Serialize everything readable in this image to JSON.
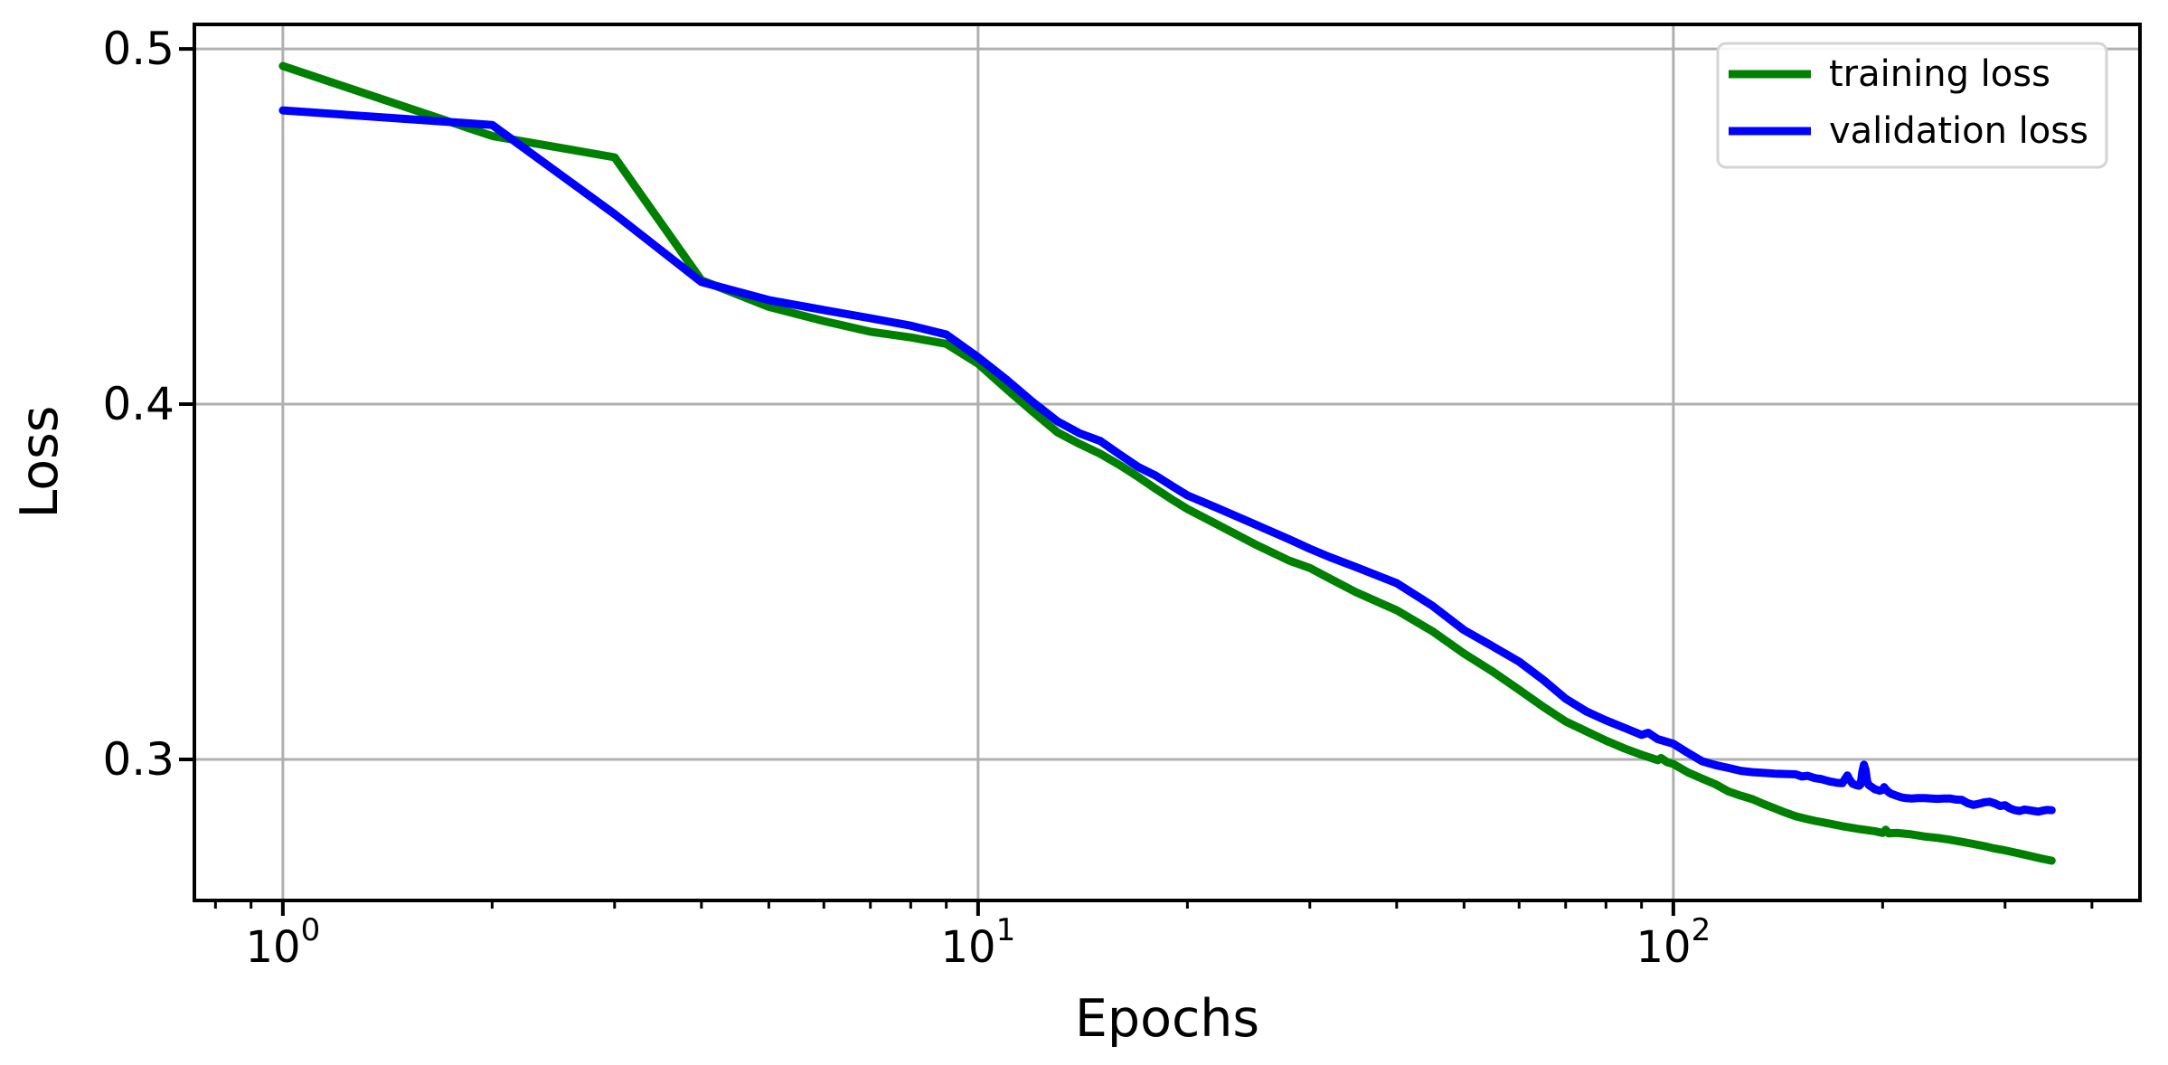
{
  "chart_data": {
    "type": "line",
    "xscale": "log",
    "title": "",
    "xlabel": "Epochs",
    "ylabel": "Loss",
    "xlim": [
      0.746,
      469
    ],
    "ylim": [
      0.2603,
      0.5069
    ],
    "grid": true,
    "colors": {
      "background": "#ffffff",
      "grid": "#b0b0b0",
      "spine": "#000000",
      "text": "#000000",
      "legend_border": "#d4d4d4"
    },
    "xticks": [
      {
        "value": 1,
        "base": "10",
        "exp": "0"
      },
      {
        "value": 10,
        "base": "10",
        "exp": "1"
      },
      {
        "value": 100,
        "base": "10",
        "exp": "2"
      }
    ],
    "minor_xticks": [
      0.8,
      0.9,
      2,
      3,
      4,
      5,
      6,
      7,
      8,
      9,
      20,
      30,
      40,
      50,
      60,
      70,
      80,
      90,
      200,
      300,
      400
    ],
    "yticks": [
      {
        "value": 0.5,
        "label": "0.5"
      },
      {
        "value": 0.4,
        "label": "0.4"
      },
      {
        "value": 0.3,
        "label": "0.3"
      }
    ],
    "legend": {
      "position": "top-right"
    },
    "series": [
      {
        "name": "training loss",
        "color": "#008000",
        "points": [
          [
            1,
            0.4952
          ],
          [
            2,
            0.4755
          ],
          [
            3,
            0.4695
          ],
          [
            4,
            0.4349
          ],
          [
            5,
            0.4274
          ],
          [
            6,
            0.4234
          ],
          [
            7,
            0.4204
          ],
          [
            8,
            0.4188
          ],
          [
            9,
            0.417
          ],
          [
            10,
            0.4114
          ],
          [
            11,
            0.4042
          ],
          [
            12,
            0.3978
          ],
          [
            13,
            0.3921
          ],
          [
            14,
            0.3888
          ],
          [
            15,
            0.386
          ],
          [
            16,
            0.3828
          ],
          [
            17,
            0.3795
          ],
          [
            18,
            0.3762
          ],
          [
            19,
            0.3732
          ],
          [
            20,
            0.3705
          ],
          [
            22,
            0.3663
          ],
          [
            25,
            0.3606
          ],
          [
            28,
            0.356
          ],
          [
            30,
            0.3539
          ],
          [
            32,
            0.351
          ],
          [
            35,
            0.347
          ],
          [
            40,
            0.342
          ],
          [
            45,
            0.3361
          ],
          [
            50,
            0.3298
          ],
          [
            55,
            0.3247
          ],
          [
            60,
            0.3196
          ],
          [
            65,
            0.3148
          ],
          [
            70,
            0.3107
          ],
          [
            75,
            0.3079
          ],
          [
            80,
            0.3053
          ],
          [
            85,
            0.3031
          ],
          [
            90,
            0.3013
          ],
          [
            95,
            0.2998
          ],
          [
            96,
            0.3004
          ],
          [
            98,
            0.2992
          ],
          [
            100,
            0.2987
          ],
          [
            105,
            0.2963
          ],
          [
            110,
            0.2946
          ],
          [
            115,
            0.293
          ],
          [
            120,
            0.291
          ],
          [
            125,
            0.2898
          ],
          [
            130,
            0.2888
          ],
          [
            135,
            0.2874
          ],
          [
            140,
            0.2862
          ],
          [
            145,
            0.285
          ],
          [
            150,
            0.284
          ],
          [
            155,
            0.2833
          ],
          [
            160,
            0.2827
          ],
          [
            165,
            0.2822
          ],
          [
            170,
            0.2817
          ],
          [
            175,
            0.2812
          ],
          [
            180,
            0.2808
          ],
          [
            185,
            0.2804
          ],
          [
            190,
            0.2801
          ],
          [
            195,
            0.2798
          ],
          [
            198,
            0.2795
          ],
          [
            200,
            0.2793
          ],
          [
            202,
            0.2802
          ],
          [
            204,
            0.2792
          ],
          [
            210,
            0.2793
          ],
          [
            215,
            0.2791
          ],
          [
            220,
            0.2789
          ],
          [
            230,
            0.2783
          ],
          [
            240,
            0.2779
          ],
          [
            250,
            0.2774
          ],
          [
            260,
            0.2768
          ],
          [
            270,
            0.2762
          ],
          [
            280,
            0.2756
          ],
          [
            290,
            0.2749
          ],
          [
            300,
            0.2744
          ],
          [
            310,
            0.2738
          ],
          [
            320,
            0.2732
          ],
          [
            330,
            0.2726
          ],
          [
            340,
            0.272
          ],
          [
            350,
            0.2715
          ]
        ]
      },
      {
        "name": "validation loss",
        "color": "#0000ff",
        "points": [
          [
            1,
            0.4827
          ],
          [
            2,
            0.4786
          ],
          [
            3,
            0.4535
          ],
          [
            4,
            0.4344
          ],
          [
            5,
            0.4293
          ],
          [
            6,
            0.4265
          ],
          [
            7,
            0.4242
          ],
          [
            8,
            0.4221
          ],
          [
            9,
            0.4196
          ],
          [
            10,
            0.4132
          ],
          [
            11,
            0.4068
          ],
          [
            12,
            0.4005
          ],
          [
            13,
            0.3952
          ],
          [
            14,
            0.3918
          ],
          [
            15,
            0.3896
          ],
          [
            16,
            0.3858
          ],
          [
            17,
            0.3823
          ],
          [
            18,
            0.3799
          ],
          [
            19,
            0.377
          ],
          [
            20,
            0.3743
          ],
          [
            22,
            0.3709
          ],
          [
            25,
            0.3662
          ],
          [
            28,
            0.362
          ],
          [
            30,
            0.3593
          ],
          [
            32,
            0.357
          ],
          [
            35,
            0.3541
          ],
          [
            40,
            0.3496
          ],
          [
            45,
            0.3433
          ],
          [
            50,
            0.3364
          ],
          [
            55,
            0.3318
          ],
          [
            60,
            0.3275
          ],
          [
            65,
            0.3224
          ],
          [
            70,
            0.3171
          ],
          [
            75,
            0.3135
          ],
          [
            80,
            0.311
          ],
          [
            85,
            0.3089
          ],
          [
            90,
            0.3069
          ],
          [
            92,
            0.3075
          ],
          [
            95,
            0.3057
          ],
          [
            100,
            0.3044
          ],
          [
            105,
            0.3018
          ],
          [
            110,
            0.2995
          ],
          [
            115,
            0.2984
          ],
          [
            120,
            0.2976
          ],
          [
            125,
            0.2968
          ],
          [
            130,
            0.2964
          ],
          [
            135,
            0.2962
          ],
          [
            140,
            0.296
          ],
          [
            145,
            0.2959
          ],
          [
            150,
            0.2958
          ],
          [
            153,
            0.2952
          ],
          [
            156,
            0.2954
          ],
          [
            160,
            0.2947
          ],
          [
            163,
            0.2945
          ],
          [
            165,
            0.2942
          ],
          [
            168,
            0.2938
          ],
          [
            170,
            0.2936
          ],
          [
            172,
            0.2934
          ],
          [
            175,
            0.2933
          ],
          [
            177,
            0.2948
          ],
          [
            178,
            0.2955
          ],
          [
            179,
            0.2945
          ],
          [
            181,
            0.2932
          ],
          [
            183,
            0.2928
          ],
          [
            185,
            0.2926
          ],
          [
            186,
            0.293
          ],
          [
            187,
            0.2965
          ],
          [
            188,
            0.2985
          ],
          [
            189,
            0.297
          ],
          [
            190,
            0.2938
          ],
          [
            191,
            0.2928
          ],
          [
            193,
            0.2922
          ],
          [
            195,
            0.2916
          ],
          [
            198,
            0.2912
          ],
          [
            200,
            0.2914
          ],
          [
            201,
            0.2922
          ],
          [
            202,
            0.2916
          ],
          [
            204,
            0.2908
          ],
          [
            206,
            0.2903
          ],
          [
            208,
            0.29
          ],
          [
            210,
            0.2897
          ],
          [
            213,
            0.2893
          ],
          [
            216,
            0.2891
          ],
          [
            220,
            0.289
          ],
          [
            225,
            0.2891
          ],
          [
            230,
            0.2891
          ],
          [
            235,
            0.289
          ],
          [
            240,
            0.2889
          ],
          [
            245,
            0.289
          ],
          [
            250,
            0.289
          ],
          [
            255,
            0.2887
          ],
          [
            260,
            0.2886
          ],
          [
            265,
            0.2877
          ],
          [
            270,
            0.2872
          ],
          [
            275,
            0.2875
          ],
          [
            280,
            0.2879
          ],
          [
            285,
            0.2881
          ],
          [
            290,
            0.2876
          ],
          [
            295,
            0.2869
          ],
          [
            300,
            0.2871
          ],
          [
            305,
            0.2862
          ],
          [
            310,
            0.2857
          ],
          [
            315,
            0.2855
          ],
          [
            320,
            0.2859
          ],
          [
            325,
            0.2857
          ],
          [
            330,
            0.2855
          ],
          [
            335,
            0.2853
          ],
          [
            340,
            0.2856
          ],
          [
            345,
            0.2858
          ],
          [
            350,
            0.2857
          ]
        ]
      }
    ]
  }
}
